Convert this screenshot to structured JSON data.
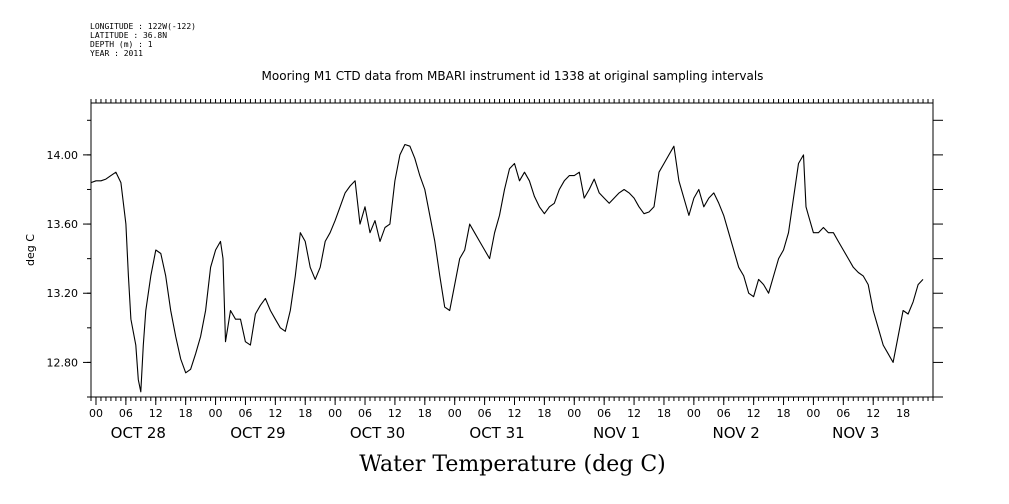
{
  "metadata": {
    "longitude": "LONGITUDE : 122W(-122)",
    "latitude": "LATITUDE : 36.8N",
    "depth": "DEPTH (m) : 1",
    "year": "YEAR : 2011"
  },
  "chart_data": {
    "type": "line",
    "title": "Mooring M1 CTD data from MBARI instrument id 1338 at original sampling intervals",
    "xlabel": "Water Temperature (deg C)",
    "ylabel": "deg C",
    "ylim": [
      12.6,
      14.3
    ],
    "y_ticks": [
      12.8,
      13.2,
      13.6,
      14.0
    ],
    "y_tick_labels": [
      "12.80",
      "13.20",
      "13.60",
      "14.00"
    ],
    "xlim_hours": [
      -1,
      168
    ],
    "x_hour_labels": [
      "00",
      "06",
      "12",
      "18",
      "00",
      "06",
      "12",
      "18",
      "00",
      "06",
      "12",
      "18",
      "00",
      "06",
      "12",
      "18",
      "00",
      "06",
      "12",
      "18",
      "00",
      "06",
      "12",
      "18",
      "00",
      "06",
      "12",
      "18"
    ],
    "day_labels": [
      "OCT 28",
      "OCT 29",
      "OCT 30",
      "OCT 31",
      "NOV  1",
      "NOV  2",
      "NOV  3"
    ],
    "grid": false,
    "series": [
      {
        "values": [
          [
            -1,
            13.84
          ],
          [
            0,
            13.85
          ],
          [
            1,
            13.85
          ],
          [
            2,
            13.86
          ],
          [
            3,
            13.88
          ],
          [
            4,
            13.9
          ],
          [
            5,
            13.84
          ],
          [
            6,
            13.6
          ],
          [
            6.5,
            13.3
          ],
          [
            7,
            13.05
          ],
          [
            8,
            12.9
          ],
          [
            8.5,
            12.7
          ],
          [
            9,
            12.63
          ],
          [
            9.5,
            12.9
          ],
          [
            10,
            13.1
          ],
          [
            11,
            13.3
          ],
          [
            12,
            13.45
          ],
          [
            13,
            13.43
          ],
          [
            14,
            13.3
          ],
          [
            15,
            13.1
          ],
          [
            16,
            12.95
          ],
          [
            17,
            12.82
          ],
          [
            18,
            12.74
          ],
          [
            19,
            12.76
          ],
          [
            20,
            12.85
          ],
          [
            21,
            12.95
          ],
          [
            22,
            13.1
          ],
          [
            23,
            13.35
          ],
          [
            24,
            13.45
          ],
          [
            25,
            13.5
          ],
          [
            25.5,
            13.4
          ],
          [
            26,
            12.92
          ],
          [
            27,
            13.1
          ],
          [
            28,
            13.05
          ],
          [
            29,
            13.05
          ],
          [
            30,
            12.92
          ],
          [
            31,
            12.9
          ],
          [
            32,
            13.08
          ],
          [
            33,
            13.13
          ],
          [
            34,
            13.17
          ],
          [
            35,
            13.1
          ],
          [
            36,
            13.05
          ],
          [
            37,
            13.0
          ],
          [
            38,
            12.98
          ],
          [
            39,
            13.1
          ],
          [
            40,
            13.3
          ],
          [
            41,
            13.55
          ],
          [
            42,
            13.5
          ],
          [
            43,
            13.35
          ],
          [
            44,
            13.28
          ],
          [
            45,
            13.35
          ],
          [
            46,
            13.5
          ],
          [
            47,
            13.55
          ],
          [
            48,
            13.62
          ],
          [
            49,
            13.7
          ],
          [
            50,
            13.78
          ],
          [
            51,
            13.82
          ],
          [
            52,
            13.85
          ],
          [
            53,
            13.6
          ],
          [
            54,
            13.7
          ],
          [
            55,
            13.55
          ],
          [
            56,
            13.62
          ],
          [
            57,
            13.5
          ],
          [
            58,
            13.58
          ],
          [
            59,
            13.6
          ],
          [
            60,
            13.85
          ],
          [
            61,
            14.0
          ],
          [
            62,
            14.06
          ],
          [
            63,
            14.05
          ],
          [
            64,
            13.98
          ],
          [
            65,
            13.88
          ],
          [
            66,
            13.8
          ],
          [
            67,
            13.65
          ],
          [
            68,
            13.5
          ],
          [
            69,
            13.3
          ],
          [
            70,
            13.12
          ],
          [
            71,
            13.1
          ],
          [
            72,
            13.25
          ],
          [
            73,
            13.4
          ],
          [
            74,
            13.45
          ],
          [
            75,
            13.6
          ],
          [
            76,
            13.55
          ],
          [
            77,
            13.5
          ],
          [
            78,
            13.45
          ],
          [
            79,
            13.4
          ],
          [
            80,
            13.55
          ],
          [
            81,
            13.65
          ],
          [
            82,
            13.8
          ],
          [
            83,
            13.92
          ],
          [
            84,
            13.95
          ],
          [
            85,
            13.85
          ],
          [
            86,
            13.9
          ],
          [
            87,
            13.85
          ],
          [
            88,
            13.76
          ],
          [
            89,
            13.7
          ],
          [
            90,
            13.66
          ],
          [
            91,
            13.7
          ],
          [
            92,
            13.72
          ],
          [
            93,
            13.8
          ],
          [
            94,
            13.85
          ],
          [
            95,
            13.88
          ],
          [
            96,
            13.88
          ],
          [
            97,
            13.9
          ],
          [
            98,
            13.75
          ],
          [
            99,
            13.8
          ],
          [
            100,
            13.86
          ],
          [
            101,
            13.78
          ],
          [
            102,
            13.75
          ],
          [
            103,
            13.72
          ],
          [
            104,
            13.75
          ],
          [
            105,
            13.78
          ],
          [
            106,
            13.8
          ],
          [
            107,
            13.78
          ],
          [
            108,
            13.75
          ],
          [
            109,
            13.7
          ],
          [
            110,
            13.66
          ],
          [
            111,
            13.67
          ],
          [
            112,
            13.7
          ],
          [
            113,
            13.9
          ],
          [
            114,
            13.95
          ],
          [
            115,
            14.0
          ],
          [
            116,
            14.05
          ],
          [
            117,
            13.85
          ],
          [
            118,
            13.75
          ],
          [
            119,
            13.65
          ],
          [
            120,
            13.75
          ],
          [
            121,
            13.8
          ],
          [
            122,
            13.7
          ],
          [
            123,
            13.75
          ],
          [
            124,
            13.78
          ],
          [
            125,
            13.72
          ],
          [
            126,
            13.65
          ],
          [
            127,
            13.55
          ],
          [
            128,
            13.45
          ],
          [
            129,
            13.35
          ],
          [
            130,
            13.3
          ],
          [
            131,
            13.2
          ],
          [
            132,
            13.18
          ],
          [
            133,
            13.28
          ],
          [
            134,
            13.25
          ],
          [
            135,
            13.2
          ],
          [
            136,
            13.3
          ],
          [
            137,
            13.4
          ],
          [
            138,
            13.45
          ],
          [
            139,
            13.55
          ],
          [
            140,
            13.75
          ],
          [
            141,
            13.95
          ],
          [
            142,
            14.0
          ],
          [
            142.5,
            13.7
          ],
          [
            143,
            13.65
          ],
          [
            144,
            13.55
          ],
          [
            145,
            13.55
          ],
          [
            146,
            13.58
          ],
          [
            147,
            13.55
          ],
          [
            148,
            13.55
          ],
          [
            149,
            13.5
          ],
          [
            150,
            13.45
          ],
          [
            151,
            13.4
          ],
          [
            152,
            13.35
          ],
          [
            153,
            13.32
          ],
          [
            154,
            13.3
          ],
          [
            155,
            13.25
          ],
          [
            156,
            13.1
          ],
          [
            157,
            13.0
          ],
          [
            158,
            12.9
          ],
          [
            159,
            12.85
          ],
          [
            160,
            12.8
          ],
          [
            161,
            12.95
          ],
          [
            162,
            13.1
          ],
          [
            163,
            13.08
          ],
          [
            164,
            13.15
          ],
          [
            165,
            13.25
          ],
          [
            166,
            13.28
          ]
        ]
      }
    ]
  }
}
